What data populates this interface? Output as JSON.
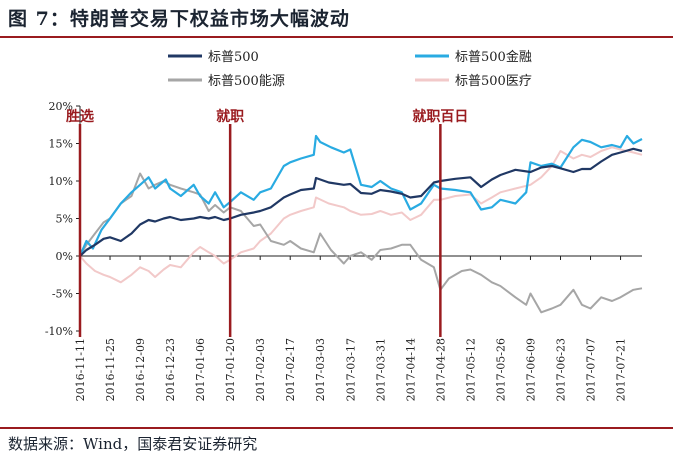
{
  "title": "图 7：特朗普交易下权益市场大幅波动",
  "source": "数据来源：Wind，国泰君安证券研究",
  "colors": {
    "sp500": "#203864",
    "financials": "#29ABE2",
    "energy": "#A6A6A6",
    "healthcare": "#F2C9C9",
    "event": "#9A1B1F"
  },
  "chart_data": {
    "type": "line",
    "x_start": "2016-11-11",
    "x_end": "2017-07-31",
    "ylim": [
      -10,
      20
    ],
    "yticks": [
      -10,
      -5,
      0,
      5,
      10,
      15,
      20
    ],
    "ytick_labels": [
      "-10%",
      "-5%",
      "0%",
      "5%",
      "10%",
      "15%",
      "20%"
    ],
    "xtick_labels": [
      "2016-11-11",
      "2016-11-25",
      "2016-12-09",
      "2016-12-23",
      "2017-01-06",
      "2017-01-20",
      "2017-02-03",
      "2017-02-17",
      "2017-03-03",
      "2017-03-17",
      "2017-03-31",
      "2017-04-14",
      "2017-04-28",
      "2017-05-12",
      "2017-05-26",
      "2017-06-09",
      "2017-06-23",
      "2017-07-07",
      "2017-07-21"
    ],
    "legend": [
      "标普500",
      "标普500金融",
      "标普500能源",
      "标普500医疗"
    ],
    "events": [
      {
        "date": "2016-11-11",
        "label": "胜选"
      },
      {
        "date": "2017-01-20",
        "label": "就职"
      },
      {
        "date": "2017-04-28",
        "label": "就职百日"
      }
    ],
    "series": [
      {
        "name": "标普500",
        "key": "sp500",
        "points": [
          [
            "2016-11-11",
            0
          ],
          [
            "2016-11-14",
            0.8
          ],
          [
            "2016-11-18",
            1.5
          ],
          [
            "2016-11-22",
            2.3
          ],
          [
            "2016-11-25",
            2.5
          ],
          [
            "2016-11-30",
            2.0
          ],
          [
            "2016-12-05",
            3.0
          ],
          [
            "2016-12-09",
            4.2
          ],
          [
            "2016-12-13",
            4.8
          ],
          [
            "2016-12-16",
            4.6
          ],
          [
            "2016-12-20",
            5.0
          ],
          [
            "2016-12-23",
            5.2
          ],
          [
            "2016-12-28",
            4.8
          ],
          [
            "2017-01-03",
            5.0
          ],
          [
            "2017-01-06",
            5.2
          ],
          [
            "2017-01-10",
            5.0
          ],
          [
            "2017-01-13",
            5.2
          ],
          [
            "2017-01-17",
            4.8
          ],
          [
            "2017-01-20",
            5.0
          ],
          [
            "2017-01-25",
            5.5
          ],
          [
            "2017-01-31",
            5.8
          ],
          [
            "2017-02-03",
            6.0
          ],
          [
            "2017-02-08",
            6.5
          ],
          [
            "2017-02-14",
            7.8
          ],
          [
            "2017-02-17",
            8.2
          ],
          [
            "2017-02-22",
            8.8
          ],
          [
            "2017-02-28",
            9.0
          ],
          [
            "2017-03-01",
            10.4
          ],
          [
            "2017-03-07",
            9.8
          ],
          [
            "2017-03-14",
            9.5
          ],
          [
            "2017-03-17",
            9.6
          ],
          [
            "2017-03-22",
            8.4
          ],
          [
            "2017-03-27",
            8.3
          ],
          [
            "2017-03-31",
            8.8
          ],
          [
            "2017-04-05",
            8.6
          ],
          [
            "2017-04-10",
            8.3
          ],
          [
            "2017-04-14",
            7.8
          ],
          [
            "2017-04-19",
            8.0
          ],
          [
            "2017-04-25",
            9.8
          ],
          [
            "2017-04-28",
            10.0
          ],
          [
            "2017-05-05",
            10.3
          ],
          [
            "2017-05-12",
            10.5
          ],
          [
            "2017-05-17",
            9.2
          ],
          [
            "2017-05-22",
            10.2
          ],
          [
            "2017-05-26",
            10.8
          ],
          [
            "2017-06-02",
            11.5
          ],
          [
            "2017-06-09",
            11.2
          ],
          [
            "2017-06-14",
            11.8
          ],
          [
            "2017-06-19",
            12.0
          ],
          [
            "2017-06-23",
            11.7
          ],
          [
            "2017-06-29",
            11.2
          ],
          [
            "2017-07-03",
            11.6
          ],
          [
            "2017-07-07",
            11.6
          ],
          [
            "2017-07-12",
            12.6
          ],
          [
            "2017-07-17",
            13.5
          ],
          [
            "2017-07-21",
            13.8
          ],
          [
            "2017-07-27",
            14.3
          ],
          [
            "2017-07-31",
            14.0
          ]
        ]
      },
      {
        "name": "标普500金融",
        "key": "financials",
        "points": [
          [
            "2016-11-11",
            0
          ],
          [
            "2016-11-14",
            2.0
          ],
          [
            "2016-11-17",
            1.0
          ],
          [
            "2016-11-21",
            3.5
          ],
          [
            "2016-11-25",
            5.0
          ],
          [
            "2016-11-30",
            7.0
          ],
          [
            "2016-12-05",
            8.5
          ],
          [
            "2016-12-09",
            9.5
          ],
          [
            "2016-12-13",
            10.5
          ],
          [
            "2016-12-16",
            9.0
          ],
          [
            "2016-12-21",
            10.2
          ],
          [
            "2016-12-23",
            9.0
          ],
          [
            "2016-12-28",
            8.0
          ],
          [
            "2017-01-03",
            9.5
          ],
          [
            "2017-01-06",
            8.0
          ],
          [
            "2017-01-10",
            7.0
          ],
          [
            "2017-01-13",
            8.5
          ],
          [
            "2017-01-17",
            6.5
          ],
          [
            "2017-01-20",
            7.2
          ],
          [
            "2017-01-25",
            8.5
          ],
          [
            "2017-01-31",
            7.5
          ],
          [
            "2017-02-03",
            8.5
          ],
          [
            "2017-02-08",
            9.0
          ],
          [
            "2017-02-14",
            12.0
          ],
          [
            "2017-02-17",
            12.5
          ],
          [
            "2017-02-22",
            13.0
          ],
          [
            "2017-02-28",
            13.5
          ],
          [
            "2017-03-01",
            16.0
          ],
          [
            "2017-03-03",
            15.2
          ],
          [
            "2017-03-08",
            14.5
          ],
          [
            "2017-03-14",
            13.8
          ],
          [
            "2017-03-17",
            14.2
          ],
          [
            "2017-03-22",
            9.5
          ],
          [
            "2017-03-27",
            9.2
          ],
          [
            "2017-03-31",
            10.0
          ],
          [
            "2017-04-05",
            9.0
          ],
          [
            "2017-04-10",
            8.5
          ],
          [
            "2017-04-14",
            6.2
          ],
          [
            "2017-04-19",
            7.0
          ],
          [
            "2017-04-25",
            9.5
          ],
          [
            "2017-04-28",
            9.0
          ],
          [
            "2017-05-05",
            8.8
          ],
          [
            "2017-05-12",
            8.5
          ],
          [
            "2017-05-17",
            6.2
          ],
          [
            "2017-05-22",
            6.5
          ],
          [
            "2017-05-26",
            7.5
          ],
          [
            "2017-06-02",
            7.0
          ],
          [
            "2017-06-07",
            8.5
          ],
          [
            "2017-06-09",
            12.5
          ],
          [
            "2017-06-14",
            12.0
          ],
          [
            "2017-06-19",
            12.3
          ],
          [
            "2017-06-23",
            11.8
          ],
          [
            "2017-06-29",
            14.5
          ],
          [
            "2017-07-03",
            15.5
          ],
          [
            "2017-07-07",
            15.2
          ],
          [
            "2017-07-12",
            14.5
          ],
          [
            "2017-07-17",
            14.8
          ],
          [
            "2017-07-21",
            14.5
          ],
          [
            "2017-07-24",
            16.0
          ],
          [
            "2017-07-27",
            15.0
          ],
          [
            "2017-07-31",
            15.6
          ]
        ]
      },
      {
        "name": "标普500能源",
        "key": "energy",
        "points": [
          [
            "2016-11-11",
            0
          ],
          [
            "2016-11-14",
            1.5
          ],
          [
            "2016-11-18",
            3.0
          ],
          [
            "2016-11-22",
            4.5
          ],
          [
            "2016-11-25",
            5.0
          ],
          [
            "2016-11-30",
            7.0
          ],
          [
            "2016-12-05",
            8.0
          ],
          [
            "2016-12-09",
            11.0
          ],
          [
            "2016-12-13",
            9.0
          ],
          [
            "2016-12-16",
            9.5
          ],
          [
            "2016-12-20",
            10.0
          ],
          [
            "2016-12-23",
            9.5
          ],
          [
            "2016-12-28",
            9.0
          ],
          [
            "2017-01-03",
            8.5
          ],
          [
            "2017-01-06",
            8.2
          ],
          [
            "2017-01-10",
            6.0
          ],
          [
            "2017-01-13",
            6.8
          ],
          [
            "2017-01-17",
            5.8
          ],
          [
            "2017-01-20",
            6.5
          ],
          [
            "2017-01-25",
            6.0
          ],
          [
            "2017-01-31",
            4.0
          ],
          [
            "2017-02-03",
            4.2
          ],
          [
            "2017-02-08",
            2.0
          ],
          [
            "2017-02-14",
            1.5
          ],
          [
            "2017-02-17",
            2.0
          ],
          [
            "2017-02-22",
            1.0
          ],
          [
            "2017-02-28",
            0.5
          ],
          [
            "2017-03-03",
            3.0
          ],
          [
            "2017-03-08",
            0.8
          ],
          [
            "2017-03-14",
            -1.0
          ],
          [
            "2017-03-17",
            0.0
          ],
          [
            "2017-03-22",
            0.5
          ],
          [
            "2017-03-27",
            -0.5
          ],
          [
            "2017-03-31",
            0.8
          ],
          [
            "2017-04-05",
            1.0
          ],
          [
            "2017-04-10",
            1.5
          ],
          [
            "2017-04-14",
            1.5
          ],
          [
            "2017-04-19",
            -0.5
          ],
          [
            "2017-04-25",
            -1.5
          ],
          [
            "2017-04-28",
            -4.5
          ],
          [
            "2017-05-02",
            -3.0
          ],
          [
            "2017-05-08",
            -2.0
          ],
          [
            "2017-05-12",
            -1.8
          ],
          [
            "2017-05-17",
            -2.5
          ],
          [
            "2017-05-22",
            -3.5
          ],
          [
            "2017-05-26",
            -4.0
          ],
          [
            "2017-06-02",
            -5.5
          ],
          [
            "2017-06-07",
            -6.5
          ],
          [
            "2017-06-09",
            -5.0
          ],
          [
            "2017-06-14",
            -7.5
          ],
          [
            "2017-06-19",
            -7.0
          ],
          [
            "2017-06-23",
            -6.5
          ],
          [
            "2017-06-29",
            -4.5
          ],
          [
            "2017-07-03",
            -6.5
          ],
          [
            "2017-07-07",
            -7.0
          ],
          [
            "2017-07-12",
            -5.5
          ],
          [
            "2017-07-17",
            -6.0
          ],
          [
            "2017-07-21",
            -5.5
          ],
          [
            "2017-07-27",
            -4.5
          ],
          [
            "2017-07-31",
            -4.3
          ]
        ]
      },
      {
        "name": "标普500医疗",
        "key": "healthcare",
        "points": [
          [
            "2016-11-11",
            0
          ],
          [
            "2016-11-14",
            -1.0
          ],
          [
            "2016-11-18",
            -2.0
          ],
          [
            "2016-11-22",
            -2.5
          ],
          [
            "2016-11-25",
            -2.8
          ],
          [
            "2016-11-30",
            -3.5
          ],
          [
            "2016-12-05",
            -2.5
          ],
          [
            "2016-12-09",
            -1.5
          ],
          [
            "2016-12-13",
            -2.0
          ],
          [
            "2016-12-16",
            -2.8
          ],
          [
            "2016-12-20",
            -1.8
          ],
          [
            "2016-12-23",
            -1.2
          ],
          [
            "2016-12-28",
            -1.5
          ],
          [
            "2017-01-03",
            0.5
          ],
          [
            "2017-01-06",
            1.2
          ],
          [
            "2017-01-10",
            0.5
          ],
          [
            "2017-01-13",
            0.0
          ],
          [
            "2017-01-17",
            -1.0
          ],
          [
            "2017-01-20",
            -0.5
          ],
          [
            "2017-01-25",
            0.5
          ],
          [
            "2017-01-31",
            1.0
          ],
          [
            "2017-02-03",
            2.0
          ],
          [
            "2017-02-08",
            3.0
          ],
          [
            "2017-02-14",
            5.0
          ],
          [
            "2017-02-17",
            5.5
          ],
          [
            "2017-02-22",
            6.0
          ],
          [
            "2017-02-28",
            6.5
          ],
          [
            "2017-03-01",
            7.8
          ],
          [
            "2017-03-07",
            7.0
          ],
          [
            "2017-03-14",
            6.5
          ],
          [
            "2017-03-17",
            6.0
          ],
          [
            "2017-03-22",
            5.5
          ],
          [
            "2017-03-27",
            5.6
          ],
          [
            "2017-03-31",
            6.0
          ],
          [
            "2017-04-05",
            5.5
          ],
          [
            "2017-04-10",
            5.8
          ],
          [
            "2017-04-14",
            4.8
          ],
          [
            "2017-04-19",
            5.5
          ],
          [
            "2017-04-25",
            7.5
          ],
          [
            "2017-04-28",
            7.5
          ],
          [
            "2017-05-05",
            8.0
          ],
          [
            "2017-05-12",
            8.2
          ],
          [
            "2017-05-17",
            7.0
          ],
          [
            "2017-05-22",
            7.8
          ],
          [
            "2017-05-26",
            8.5
          ],
          [
            "2017-06-02",
            9.0
          ],
          [
            "2017-06-09",
            9.5
          ],
          [
            "2017-06-14",
            10.5
          ],
          [
            "2017-06-19",
            12.0
          ],
          [
            "2017-06-23",
            14.0
          ],
          [
            "2017-06-29",
            13.0
          ],
          [
            "2017-07-03",
            13.5
          ],
          [
            "2017-07-07",
            13.2
          ],
          [
            "2017-07-12",
            14.0
          ],
          [
            "2017-07-17",
            14.5
          ],
          [
            "2017-07-21",
            14.2
          ],
          [
            "2017-07-27",
            13.8
          ],
          [
            "2017-07-31",
            13.5
          ]
        ]
      }
    ]
  }
}
